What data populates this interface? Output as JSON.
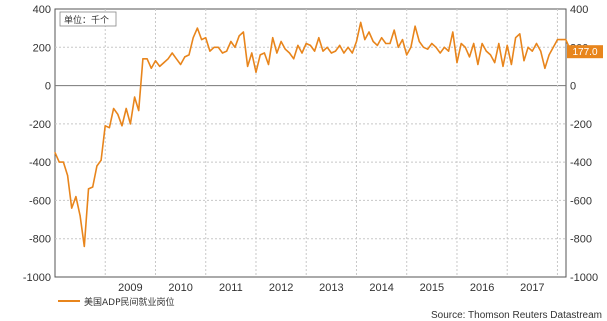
{
  "chart_data": {
    "type": "line",
    "unit_label": "单位：千个",
    "y_ticks": [
      400,
      200,
      0,
      -200,
      -400,
      -600,
      -800,
      -1000
    ],
    "ylim": [
      -1000,
      400
    ],
    "x_ticks": [
      "2009",
      "2010",
      "2011",
      "2012",
      "2013",
      "2014",
      "2015",
      "2016",
      "2017"
    ],
    "xlim": [
      2008.0,
      2018.17
    ],
    "grid": true,
    "legend_position": "bottom-left",
    "source": "Source: Thomson Reuters Datastream",
    "last_value_label": "177.0",
    "line_color": "#e8851c",
    "series": [
      {
        "name": "美国ADP民间就业岗位",
        "start": 2008.0,
        "step": 0.0833333,
        "values": [
          -350,
          -400,
          -400,
          -470,
          -640,
          -580,
          -680,
          -840,
          -540,
          -530,
          -420,
          -390,
          -210,
          -220,
          -120,
          -150,
          -210,
          -120,
          -200,
          -60,
          -130,
          140,
          140,
          90,
          130,
          100,
          120,
          140,
          170,
          140,
          110,
          150,
          160,
          250,
          300,
          240,
          250,
          180,
          200,
          200,
          170,
          180,
          230,
          200,
          260,
          280,
          100,
          170,
          70,
          160,
          170,
          110,
          250,
          170,
          230,
          190,
          170,
          140,
          210,
          170,
          220,
          210,
          180,
          250,
          180,
          200,
          170,
          180,
          210,
          170,
          200,
          170,
          230,
          330,
          240,
          280,
          230,
          210,
          250,
          220,
          220,
          290,
          200,
          240,
          160,
          200,
          310,
          230,
          200,
          190,
          220,
          200,
          170,
          200,
          180,
          280,
          120,
          220,
          200,
          150,
          220,
          110,
          220,
          180,
          160,
          120,
          220,
          100,
          210,
          110,
          250,
          270,
          130,
          200,
          180,
          220,
          180,
          90,
          160,
          200,
          240,
          240,
          240,
          190,
          170,
          190,
          177
        ]
      }
    ]
  }
}
